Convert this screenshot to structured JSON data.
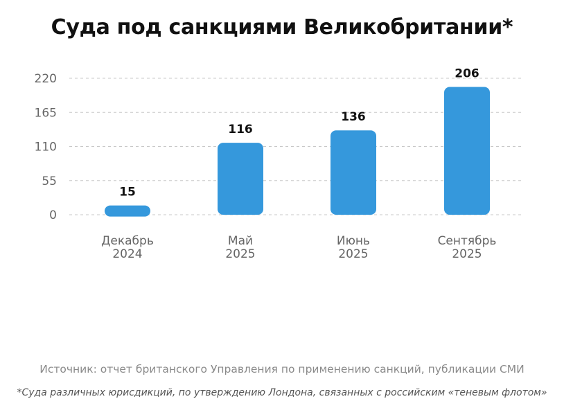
{
  "chart_data": {
    "type": "bar",
    "title": "Суда под санкциями Великобритании*",
    "categories": [
      {
        "line1": "Декабрь",
        "line2": "2024"
      },
      {
        "line1": "Май",
        "line2": "2025"
      },
      {
        "line1": "Июнь",
        "line2": "2025"
      },
      {
        "line1": "Сентябрь",
        "line2": "2025"
      }
    ],
    "values": [
      15,
      116,
      136,
      206
    ],
    "ylim": [
      0,
      220
    ],
    "yticks": [
      0,
      55,
      110,
      165,
      220
    ],
    "xlabel": "",
    "ylabel": "",
    "grid": true,
    "bar_color": "#3598dc"
  },
  "source": "Источник: отчет британского Управления по применению санкций, публикации СМИ",
  "footnote": "*Суда различных юрисдикций, по утверждению Лондона, связанных с российским «теневым флотом»"
}
